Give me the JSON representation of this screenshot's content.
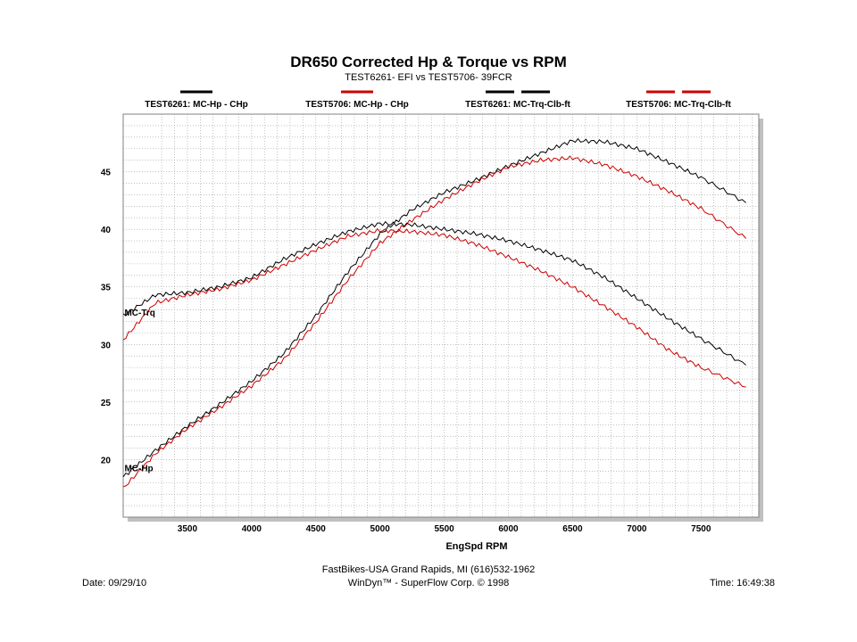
{
  "header": {
    "title": "DR650 Corrected Hp & Torque vs RPM",
    "subtitle": "TEST6261- EFI vs TEST5706- 39FCR"
  },
  "legend": [
    {
      "label": "TEST6261: MC-Hp - CHp",
      "color": "#000000",
      "dashes": 1
    },
    {
      "label": "TEST5706: MC-Hp - CHp",
      "color": "#cc0000",
      "dashes": 1
    },
    {
      "label": "TEST6261: MC-Trq-Clb-ft",
      "color": "#000000",
      "dashes": 2
    },
    {
      "label": "TEST5706: MC-Trq-Clb-ft",
      "color": "#cc0000",
      "dashes": 2
    }
  ],
  "footer": {
    "company": "FastBikes-USA Grand Rapids, MI (616)532-1962",
    "date": "Date: 09/29/10",
    "software": "WinDyn™ - SuperFlow Corp. © 1998",
    "time": "Time: 16:49:38"
  },
  "chart_data": {
    "type": "line",
    "title": "DR650 Corrected Hp & Torque vs RPM",
    "subtitle": "TEST6261- EFI vs TEST5706- 39FCR",
    "xlabel": "EngSpd  RPM",
    "ylabel": "",
    "xlim": [
      3000,
      7950
    ],
    "ylim": [
      15,
      50
    ],
    "xticks": [
      3500,
      4000,
      4500,
      5000,
      5500,
      6000,
      6500,
      7000,
      7500
    ],
    "yticks": [
      20,
      25,
      30,
      35,
      40,
      45
    ],
    "grid": true,
    "annotations": [
      {
        "text": "MC-Trq",
        "x": 3010,
        "y": 32.5
      },
      {
        "text": "MC-Hp",
        "x": 3010,
        "y": 19.0
      }
    ],
    "series": [
      {
        "name": "TEST6261: MC-Hp - CHp",
        "color": "#000000",
        "x": [
          3000,
          3250,
          3500,
          3750,
          4000,
          4250,
          4500,
          4750,
          5000,
          5250,
          5500,
          5750,
          6000,
          6250,
          6500,
          6750,
          7000,
          7250,
          7500,
          7850
        ],
        "y": [
          18.5,
          20.8,
          22.9,
          24.8,
          26.8,
          29.2,
          32.5,
          36.3,
          39.6,
          41.7,
          43.2,
          44.3,
          45.5,
          46.6,
          47.7,
          47.6,
          47.0,
          45.8,
          44.5,
          42.3
        ]
      },
      {
        "name": "TEST5706: MC-Hp - CHp",
        "color": "#cc0000",
        "x": [
          3000,
          3250,
          3500,
          3750,
          4000,
          4250,
          4500,
          4750,
          5000,
          5250,
          5500,
          5750,
          6000,
          6250,
          6500,
          6750,
          7000,
          7250,
          7500,
          7850
        ],
        "y": [
          17.5,
          20.5,
          22.7,
          24.5,
          26.4,
          28.7,
          31.9,
          35.6,
          38.8,
          40.8,
          42.6,
          44.1,
          45.4,
          46.0,
          46.2,
          45.6,
          44.6,
          43.3,
          41.8,
          39.2
        ]
      },
      {
        "name": "TEST6261: MC-Trq-Clb-ft",
        "color": "#000000",
        "x": [
          3000,
          3250,
          3500,
          3750,
          4000,
          4250,
          4500,
          4750,
          5000,
          5250,
          5500,
          5750,
          6000,
          6250,
          6500,
          6750,
          7000,
          7250,
          7500,
          7850
        ],
        "y": [
          32.5,
          34.3,
          34.5,
          35.0,
          35.8,
          37.4,
          38.7,
          39.8,
          40.5,
          40.4,
          40.0,
          39.6,
          39.0,
          38.2,
          37.3,
          35.8,
          34.0,
          32.2,
          30.5,
          28.2
        ]
      },
      {
        "name": "TEST5706: MC-Trq-Clb-ft",
        "color": "#cc0000",
        "x": [
          3000,
          3250,
          3500,
          3750,
          4000,
          4250,
          4500,
          4750,
          5000,
          5250,
          5500,
          5750,
          6000,
          6250,
          6500,
          6750,
          7000,
          7250,
          7500,
          7850
        ],
        "y": [
          30.4,
          33.6,
          34.3,
          34.8,
          35.6,
          36.9,
          38.2,
          39.4,
          39.9,
          39.8,
          39.5,
          38.7,
          37.6,
          36.4,
          35.0,
          33.3,
          31.5,
          29.5,
          28.0,
          26.3
        ]
      }
    ]
  }
}
